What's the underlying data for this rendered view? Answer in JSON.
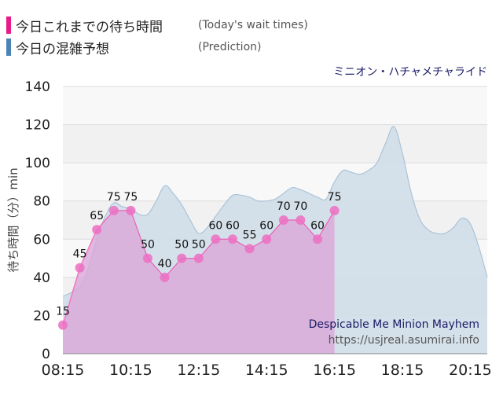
{
  "legend": [
    {
      "label": "今日これまでの待ち時間",
      "sub": "(Today's wait times)",
      "color": "#e8198b"
    },
    {
      "label": "今日の混雑予想",
      "sub": "(Prediction)",
      "color": "#4a84b4"
    }
  ],
  "attraction_jp": "ミニオン・ハチャメチャライド",
  "ride_name_en": "Despicable Me Minion Mayhem",
  "source_url": "https://usjreal.asumirai.info",
  "colors": {
    "today_fill": "#dba8d8",
    "today_line": "#e860b8",
    "today_marker": "#ec6fc2",
    "pred_fill": "#cfdde8",
    "pred_line": "#aac3d8",
    "first_segment": "#f07cc8",
    "band_dark": "#f1f1f1",
    "band_light": "#f8f8f8"
  },
  "chart_data": {
    "type": "area",
    "ylabel": "待ち時間（分）min",
    "ylim": [
      0,
      140
    ],
    "yticks": [
      0,
      20,
      40,
      60,
      80,
      100,
      120,
      140
    ],
    "xlim": [
      "08:15",
      "20:45"
    ],
    "xticks": [
      "08:15",
      "10:15",
      "12:15",
      "14:15",
      "16:15",
      "18:15",
      "20:15"
    ],
    "series": [
      {
        "name": "今日これまでの待ち時間",
        "x": [
          "08:15",
          "08:45",
          "09:15",
          "09:45",
          "10:15",
          "10:45",
          "11:15",
          "11:45",
          "12:15",
          "12:45",
          "13:15",
          "13:45",
          "14:15",
          "14:45",
          "15:15",
          "15:45",
          "16:15"
        ],
        "values": [
          15,
          45,
          65,
          75,
          75,
          50,
          40,
          50,
          50,
          60,
          60,
          55,
          60,
          70,
          70,
          60,
          75
        ]
      },
      {
        "name": "今日の混雑予想",
        "x": [
          "08:15",
          "08:45",
          "09:00",
          "09:15",
          "09:30",
          "09:45",
          "10:00",
          "10:15",
          "10:30",
          "10:45",
          "11:00",
          "11:15",
          "11:30",
          "11:45",
          "12:00",
          "12:15",
          "12:30",
          "12:45",
          "13:00",
          "13:15",
          "13:30",
          "13:45",
          "14:00",
          "14:15",
          "14:30",
          "14:45",
          "15:00",
          "15:15",
          "15:30",
          "15:45",
          "16:00",
          "16:15",
          "16:30",
          "16:45",
          "17:00",
          "17:15",
          "17:30",
          "17:45",
          "18:00",
          "18:15",
          "18:30",
          "18:45",
          "19:00",
          "19:15",
          "19:30",
          "19:45",
          "20:00",
          "20:15",
          "20:30",
          "20:45"
        ],
        "values": [
          30,
          35,
          45,
          60,
          72,
          79,
          77,
          76,
          73,
          73,
          80,
          88,
          84,
          78,
          70,
          63,
          66,
          72,
          78,
          83,
          83,
          82,
          80,
          80,
          81,
          84,
          87,
          86,
          84,
          82,
          81,
          90,
          96,
          95,
          94,
          96,
          100,
          110,
          119,
          105,
          85,
          71,
          65,
          63,
          63,
          66,
          71,
          68,
          56,
          40
        ]
      }
    ]
  }
}
